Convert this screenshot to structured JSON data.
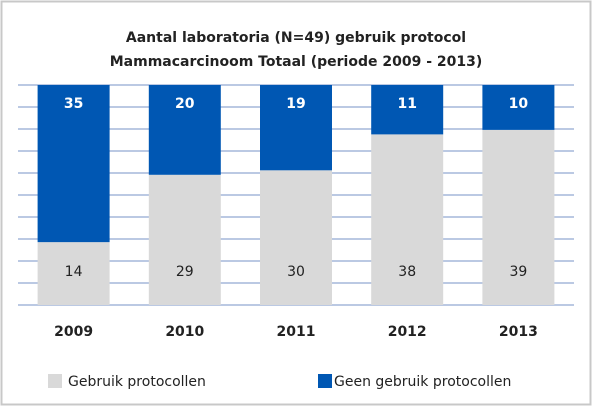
{
  "chart_data": {
    "type": "stacked_bar",
    "title": "Aantal laboratoria (N=49) gebruik protocol",
    "subtitle": "Mammacarcinoom Totaal (periode 2009 - 2013)",
    "categories": [
      "2009",
      "2010",
      "2011",
      "2012",
      "2013"
    ],
    "series": [
      {
        "name": "Gebruik protocollen",
        "color": "#d9d9d9",
        "values": [
          14,
          29,
          30,
          38,
          39
        ]
      },
      {
        "name": "Geen gebruik protocollen",
        "color": "#0057b3",
        "values": [
          35,
          20,
          19,
          11,
          10
        ]
      }
    ],
    "ylim": [
      0,
      49
    ],
    "grid": true
  }
}
